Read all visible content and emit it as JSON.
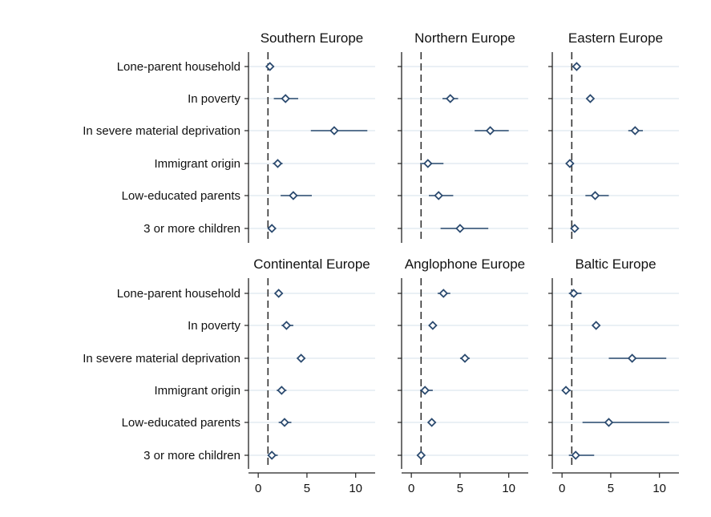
{
  "chart_data": {
    "type": "scatter",
    "subtype": "coefficient-plot-with-confidence-intervals",
    "categories": [
      "Lone-parent household",
      "In poverty",
      "In severe material deprivation",
      "Immigrant origin",
      "Low-educated parents",
      "3 or more children"
    ],
    "x_ticks": [
      0,
      5,
      10
    ],
    "xlim": [
      -1,
      12
    ],
    "reference_line": 1,
    "grid": true,
    "colors": {
      "marker": "#2b4a6f",
      "ci": "#2b4a6f",
      "grid": "#eaf0f5",
      "reference": "#333333",
      "axis": "#222222"
    },
    "panels": [
      {
        "title": "Southern Europe",
        "points": [
          {
            "est": 1.2,
            "lo": 0.9,
            "hi": 1.5
          },
          {
            "est": 2.8,
            "lo": 1.6,
            "hi": 4.1
          },
          {
            "est": 7.8,
            "lo": 5.4,
            "hi": 11.2
          },
          {
            "est": 2.0,
            "lo": 1.5,
            "hi": 2.5
          },
          {
            "est": 3.6,
            "lo": 2.3,
            "hi": 5.5
          },
          {
            "est": 1.4,
            "lo": 1.1,
            "hi": 1.7
          }
        ]
      },
      {
        "title": "Northern Europe",
        "points": [
          {
            "est": null,
            "lo": null,
            "hi": null
          },
          {
            "est": 4.0,
            "lo": 3.2,
            "hi": 4.8
          },
          {
            "est": 8.1,
            "lo": 6.5,
            "hi": 10.0
          },
          {
            "est": 1.7,
            "lo": 0.9,
            "hi": 3.3
          },
          {
            "est": 2.8,
            "lo": 1.8,
            "hi": 4.3
          },
          {
            "est": 5.0,
            "lo": 3.0,
            "hi": 7.9
          }
        ]
      },
      {
        "title": "Eastern Europe",
        "points": [
          {
            "est": 1.5,
            "lo": 1.3,
            "hi": 1.7
          },
          {
            "est": 2.9,
            "lo": 2.7,
            "hi": 3.1
          },
          {
            "est": 7.5,
            "lo": 6.8,
            "hi": 8.3
          },
          {
            "est": 0.8,
            "lo": 0.6,
            "hi": 1.0
          },
          {
            "est": 3.4,
            "lo": 2.4,
            "hi": 4.8
          },
          {
            "est": 1.3,
            "lo": 1.1,
            "hi": 1.5
          }
        ]
      },
      {
        "title": "Continental Europe",
        "points": [
          {
            "est": 2.1,
            "lo": 1.8,
            "hi": 2.4
          },
          {
            "est": 2.9,
            "lo": 2.4,
            "hi": 3.6
          },
          {
            "est": 4.4,
            "lo": 4.0,
            "hi": 4.8
          },
          {
            "est": 2.4,
            "lo": 1.9,
            "hi": 2.9
          },
          {
            "est": 2.7,
            "lo": 2.1,
            "hi": 3.4
          },
          {
            "est": 1.4,
            "lo": 1.0,
            "hi": 2.0
          }
        ]
      },
      {
        "title": "Anglophone Europe",
        "points": [
          {
            "est": 3.3,
            "lo": 2.7,
            "hi": 4.0
          },
          {
            "est": 2.2,
            "lo": 1.8,
            "hi": 2.6
          },
          {
            "est": 5.5,
            "lo": 5.0,
            "hi": 6.0
          },
          {
            "est": 1.4,
            "lo": 0.9,
            "hi": 2.2
          },
          {
            "est": 2.1,
            "lo": 1.9,
            "hi": 2.3
          },
          {
            "est": 1.0,
            "lo": 0.9,
            "hi": 1.1
          }
        ]
      },
      {
        "title": "Baltic Europe",
        "points": [
          {
            "est": 1.2,
            "lo": 0.7,
            "hi": 2.0
          },
          {
            "est": 3.5,
            "lo": 3.2,
            "hi": 3.8
          },
          {
            "est": 7.2,
            "lo": 4.8,
            "hi": 10.7
          },
          {
            "est": 0.4,
            "lo": 0.1,
            "hi": 0.9
          },
          {
            "est": 4.8,
            "lo": 2.1,
            "hi": 11.0
          },
          {
            "est": 1.4,
            "lo": 0.7,
            "hi": 3.3
          }
        ]
      }
    ]
  }
}
